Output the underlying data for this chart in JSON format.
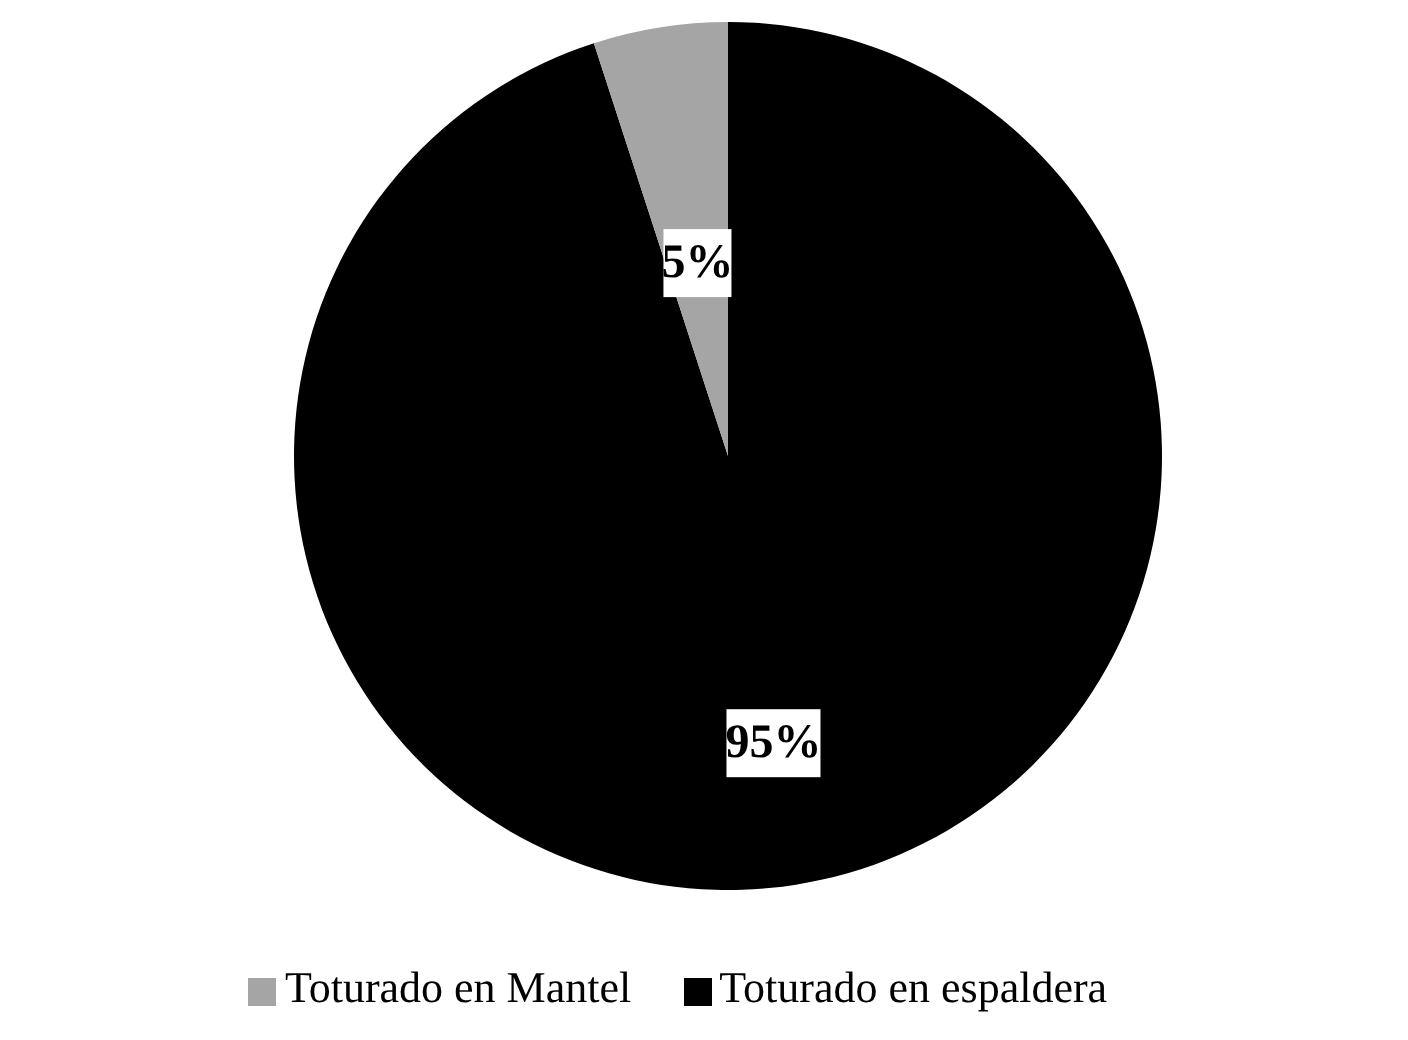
{
  "chart_data": {
    "type": "pie",
    "categories": [
      "Toturado en espaldera",
      "Toturado en Mantel"
    ],
    "values": [
      95,
      5
    ],
    "colors": [
      "#000000",
      "#a5a5a5"
    ],
    "value_labels": [
      "95%",
      "5%"
    ],
    "legend": "bottom"
  }
}
